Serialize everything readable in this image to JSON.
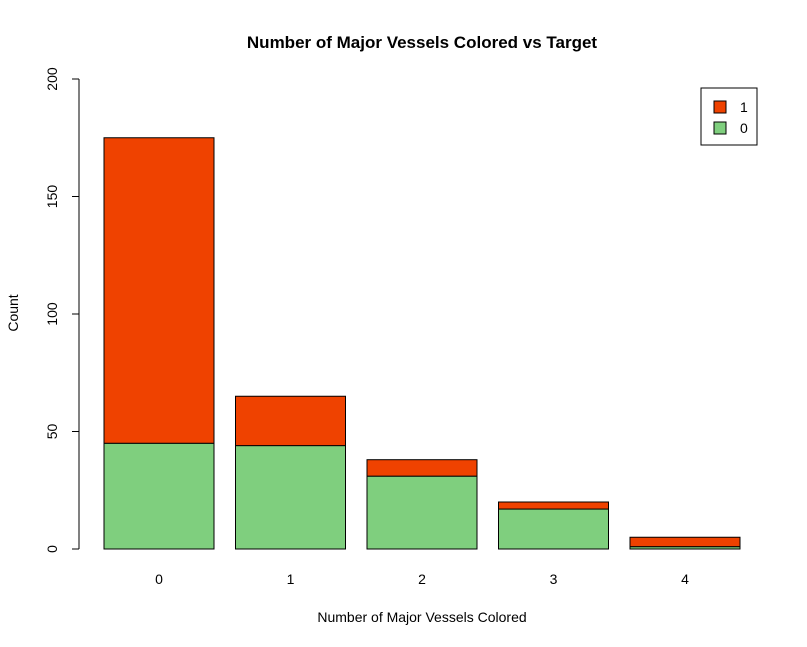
{
  "chart_data": {
    "type": "bar",
    "stacked": true,
    "title": "Number of Major Vessels Colored vs Target",
    "xlabel": "Number of Major Vessels Colored",
    "ylabel": "Count",
    "categories": [
      "0",
      "1",
      "2",
      "3",
      "4"
    ],
    "series": [
      {
        "name": "0",
        "color": "#7fcf7e",
        "values": [
          45,
          44,
          31,
          17,
          1
        ]
      },
      {
        "name": "1",
        "color": "#ef4200",
        "values": [
          130,
          21,
          7,
          3,
          4
        ]
      }
    ],
    "ylim": [
      0,
      200
    ],
    "yticks": [
      "0",
      "50",
      "100",
      "150",
      "200"
    ],
    "legend_position": "top-right",
    "legend_order": [
      "1",
      "0"
    ],
    "grid": false
  }
}
